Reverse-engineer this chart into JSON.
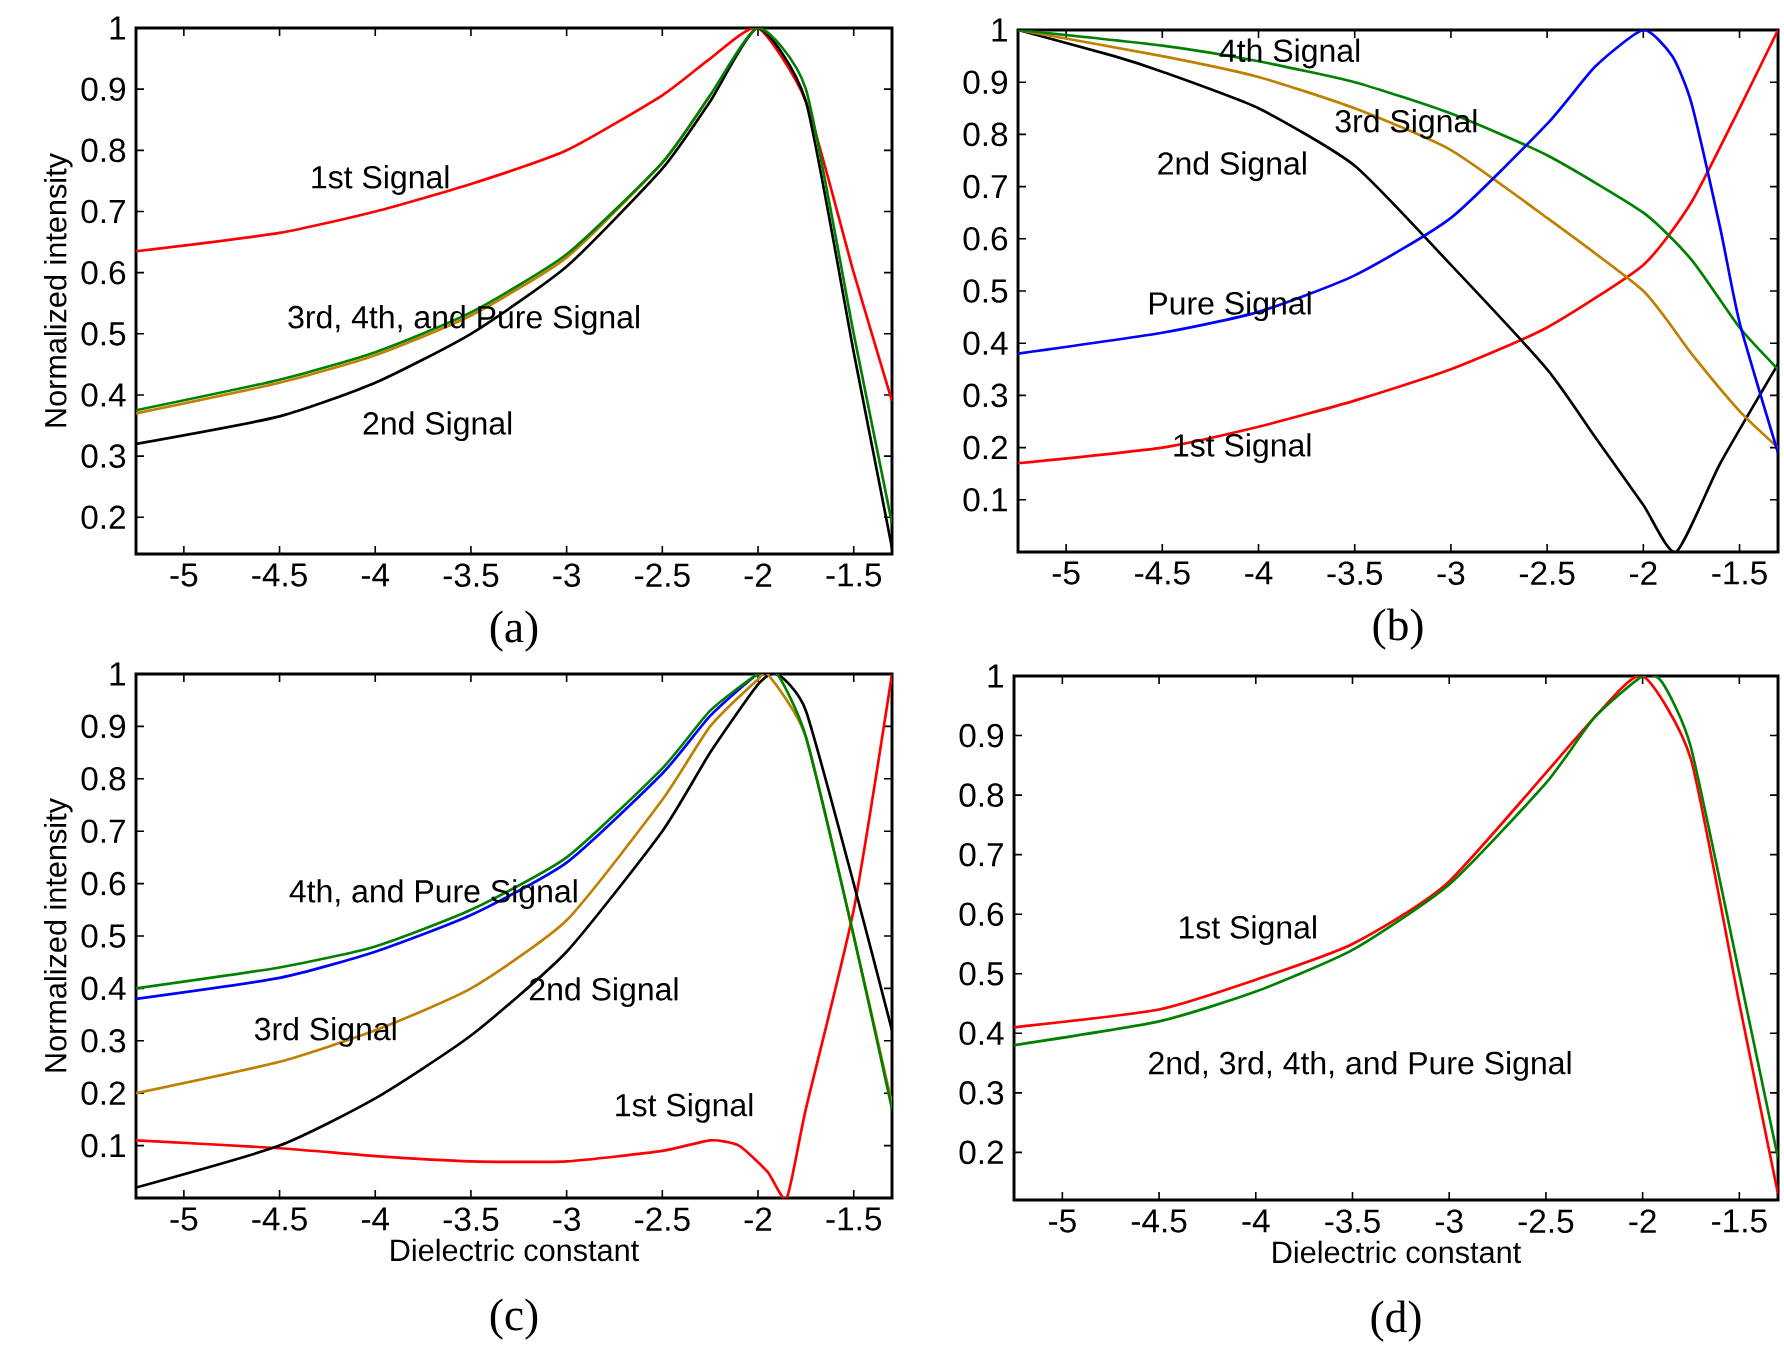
{
  "chart_data": [
    {
      "type": "line",
      "ylabel": "Normalized intensity",
      "xlim": [
        -5.25,
        -1.3
      ],
      "ylim": [
        0.14,
        1
      ],
      "xticks": [
        -5,
        -4.5,
        -4,
        -3.5,
        -3,
        -2.5,
        -2,
        -1.5
      ],
      "yticks": [
        0.2,
        0.3,
        0.4,
        0.5,
        0.6,
        0.7,
        0.8,
        0.9,
        1
      ],
      "series": [
        {
          "color": "#ff0000",
          "x": [
            -5.25,
            -4.5,
            -4,
            -3.5,
            -3,
            -2.5,
            -2.25,
            -2,
            -1.75,
            -1.5,
            -1.3
          ],
          "values": [
            0.635,
            0.665,
            0.7,
            0.745,
            0.8,
            0.89,
            0.95,
            1.0,
            0.88,
            0.6,
            0.39
          ]
        },
        {
          "color": "#000000",
          "x": [
            -5.25,
            -4.5,
            -4,
            -3.5,
            -3,
            -2.5,
            -2.25,
            -2,
            -1.75,
            -1.5,
            -1.3
          ],
          "values": [
            0.32,
            0.365,
            0.42,
            0.5,
            0.61,
            0.77,
            0.88,
            1.0,
            0.88,
            0.47,
            0.15
          ]
        },
        {
          "color": "#bf8000",
          "x": [
            -5.25,
            -4.5,
            -4,
            -3.5,
            -3,
            -2.5,
            -2.25
          ],
          "values": [
            0.37,
            0.42,
            0.465,
            0.53,
            0.625,
            0.78,
            0.89
          ]
        },
        {
          "color": "#008000",
          "x": [
            -5.25,
            -4.5,
            -4,
            -3.5,
            -3,
            -2.5,
            -2.25,
            -2,
            -1.75,
            -1.5,
            -1.3
          ],
          "values": [
            0.375,
            0.425,
            0.47,
            0.535,
            0.63,
            0.78,
            0.89,
            1.0,
            0.9,
            0.5,
            0.19
          ]
        }
      ],
      "annotations": [
        "1st Signal",
        "3rd, 4th, and Pure Signal",
        "2nd Signal",
        "(a)"
      ]
    },
    {
      "type": "line",
      "xlim": [
        -5.25,
        -1.3
      ],
      "ylim": [
        0,
        1
      ],
      "xticks": [
        -5,
        -4.5,
        -4,
        -3.5,
        -3,
        -2.5,
        -2,
        -1.5
      ],
      "yticks": [
        0.1,
        0.2,
        0.3,
        0.4,
        0.5,
        0.6,
        0.7,
        0.8,
        0.9,
        1
      ],
      "series": [
        {
          "color": "#ff0000",
          "x": [
            -5.25,
            -4.5,
            -4,
            -3.5,
            -3,
            -2.5,
            -2,
            -1.75,
            -1.5,
            -1.3
          ],
          "values": [
            0.17,
            0.2,
            0.24,
            0.29,
            0.35,
            0.43,
            0.55,
            0.67,
            0.85,
            1.0
          ]
        },
        {
          "color": "#000000",
          "x": [
            -5.25,
            -4.75,
            -4.5,
            -4,
            -3.5,
            -3,
            -2.5,
            -2.25,
            -2,
            -1.83,
            -1.6,
            -1.3
          ],
          "values": [
            1.0,
            0.95,
            0.92,
            0.85,
            0.74,
            0.55,
            0.35,
            0.22,
            0.09,
            0.0,
            0.17,
            0.36
          ]
        },
        {
          "color": "#bf8000",
          "x": [
            -5.25,
            -4.5,
            -4,
            -3.5,
            -3,
            -2.5,
            -2,
            -1.75,
            -1.5,
            -1.3
          ],
          "values": [
            1.0,
            0.95,
            0.91,
            0.85,
            0.77,
            0.64,
            0.5,
            0.38,
            0.27,
            0.2
          ]
        },
        {
          "color": "#008000",
          "x": [
            -5.25,
            -4.5,
            -4,
            -3.5,
            -3,
            -2.5,
            -2,
            -1.75,
            -1.5,
            -1.3
          ],
          "values": [
            1.0,
            0.97,
            0.94,
            0.9,
            0.84,
            0.76,
            0.65,
            0.56,
            0.43,
            0.35
          ]
        },
        {
          "color": "#0000ff",
          "x": [
            -5.25,
            -4.5,
            -4,
            -3.5,
            -3,
            -2.5,
            -2.25,
            -2,
            -1.85,
            -1.75,
            -1.6,
            -1.5,
            -1.3
          ],
          "values": [
            0.38,
            0.42,
            0.46,
            0.53,
            0.64,
            0.82,
            0.93,
            1.0,
            0.95,
            0.86,
            0.62,
            0.44,
            0.19
          ]
        }
      ],
      "annotations": [
        "4th Signal",
        "3rd Signal",
        "2nd Signal",
        "Pure Signal",
        "1st Signal",
        "(b)"
      ]
    },
    {
      "type": "line",
      "xlabel": "Dielectric constant",
      "ylabel": "Normalized intensity",
      "xlim": [
        -5.25,
        -1.3
      ],
      "ylim": [
        0,
        1
      ],
      "xticks": [
        -5,
        -4.5,
        -4,
        -3.5,
        -3,
        -2.5,
        -2,
        -1.5
      ],
      "yticks": [
        0.1,
        0.2,
        0.3,
        0.4,
        0.5,
        0.6,
        0.7,
        0.8,
        0.9,
        1
      ],
      "series": [
        {
          "color": "#ff0000",
          "x": [
            -5.25,
            -4.5,
            -4,
            -3.5,
            -3,
            -2.5,
            -2.25,
            -2.1,
            -1.95,
            -1.85,
            -1.75,
            -1.5,
            -1.3
          ],
          "values": [
            0.11,
            0.095,
            0.08,
            0.07,
            0.07,
            0.09,
            0.11,
            0.1,
            0.05,
            0.0,
            0.17,
            0.55,
            1.0
          ]
        },
        {
          "color": "#000000",
          "x": [
            -5.25,
            -4.5,
            -4,
            -3.5,
            -3,
            -2.5,
            -2.25,
            -2,
            -1.9,
            -1.75,
            -1.5,
            -1.3
          ],
          "values": [
            0.02,
            0.1,
            0.19,
            0.31,
            0.47,
            0.7,
            0.85,
            0.98,
            1.0,
            0.93,
            0.6,
            0.32
          ]
        },
        {
          "color": "#bf8000",
          "x": [
            -5.25,
            -4.5,
            -4,
            -3.5,
            -3,
            -2.5,
            -2.25,
            -2,
            -1.95,
            -1.75,
            -1.5,
            -1.3
          ],
          "values": [
            0.2,
            0.26,
            0.32,
            0.4,
            0.53,
            0.76,
            0.9,
            0.99,
            1.0,
            0.88,
            0.5,
            0.18
          ]
        },
        {
          "color": "#0000ff",
          "x": [
            -5.25,
            -4.5,
            -4,
            -3.5,
            -3,
            -2.5,
            -2.25,
            -2,
            -1.9
          ],
          "values": [
            0.38,
            0.42,
            0.47,
            0.54,
            0.64,
            0.81,
            0.92,
            1.0,
            1.0
          ]
        },
        {
          "color": "#008000",
          "x": [
            -5.25,
            -4.5,
            -4,
            -3.5,
            -3,
            -2.5,
            -2.25,
            -2,
            -1.9,
            -1.75,
            -1.5,
            -1.3
          ],
          "values": [
            0.4,
            0.44,
            0.48,
            0.55,
            0.65,
            0.82,
            0.93,
            1.0,
            1.0,
            0.88,
            0.5,
            0.17
          ]
        }
      ],
      "annotations": [
        "4th, and Pure Signal",
        "3rd Signal",
        "2nd Signal",
        "1st Signal",
        "(c)"
      ]
    },
    {
      "type": "line",
      "xlabel": "Dielectric constant",
      "xlim": [
        -5.25,
        -1.3
      ],
      "ylim": [
        0.12,
        1
      ],
      "xticks": [
        -5,
        -4.5,
        -4,
        -3.5,
        -3,
        -2.5,
        -2,
        -1.5
      ],
      "yticks": [
        0.2,
        0.3,
        0.4,
        0.5,
        0.6,
        0.7,
        0.8,
        0.9,
        1
      ],
      "series": [
        {
          "color": "#ff0000",
          "x": [
            -5.25,
            -4.5,
            -4,
            -3.5,
            -3,
            -2.25,
            -2,
            -1.75,
            -1.5,
            -1.3
          ],
          "values": [
            0.41,
            0.44,
            0.49,
            0.55,
            0.655,
            0.93,
            1.0,
            0.86,
            0.45,
            0.13
          ]
        },
        {
          "color": "#008000",
          "x": [
            -5.25,
            -4.5,
            -4,
            -3.5,
            -3,
            -2.5,
            -2.25,
            -2,
            -1.9,
            -1.75,
            -1.5,
            -1.3
          ],
          "values": [
            0.38,
            0.42,
            0.47,
            0.54,
            0.65,
            0.82,
            0.93,
            1.0,
            0.99,
            0.88,
            0.5,
            0.19
          ]
        }
      ],
      "annotations": [
        "1st Signal",
        "2nd, 3rd, 4th, and Pure Signal",
        "(d)"
      ]
    }
  ]
}
